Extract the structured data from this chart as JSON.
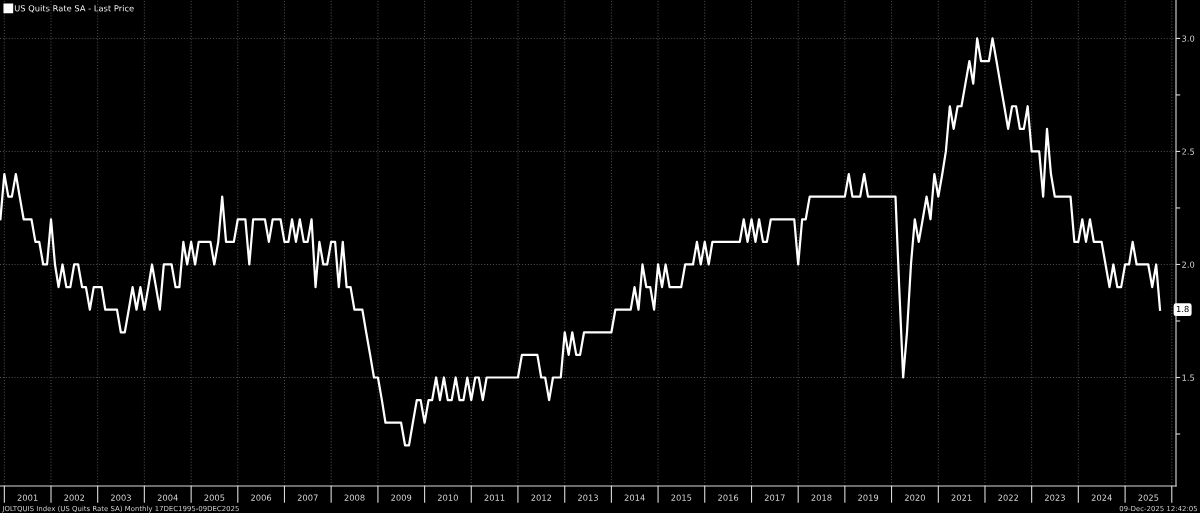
{
  "chart_data": {
    "type": "line",
    "legend": "top left",
    "grid": true,
    "line_style": "solid",
    "marker": "none",
    "xlim": [
      "2000-11-28",
      "2026-02-03"
    ],
    "ylim": [
      1.02,
      3.17
    ],
    "xticks": [
      {
        "value": "2001-01-01",
        "label": null
      },
      {
        "value": "2001-07-02",
        "label": "2001"
      },
      {
        "value": "2002-01-01",
        "label": null
      },
      {
        "value": "2002-07-02",
        "label": "2002"
      },
      {
        "value": "2003-01-01",
        "label": null
      },
      {
        "value": "2003-07-02",
        "label": "2003"
      },
      {
        "value": "2004-01-01",
        "label": null
      },
      {
        "value": "2004-07-02",
        "label": "2004"
      },
      {
        "value": "2005-01-01",
        "label": null
      },
      {
        "value": "2005-07-02",
        "label": "2005"
      },
      {
        "value": "2006-01-01",
        "label": null
      },
      {
        "value": "2006-07-02",
        "label": "2006"
      },
      {
        "value": "2007-01-01",
        "label": null
      },
      {
        "value": "2007-07-02",
        "label": "2007"
      },
      {
        "value": "2008-01-01",
        "label": null
      },
      {
        "value": "2008-07-02",
        "label": "2008"
      },
      {
        "value": "2009-01-01",
        "label": null
      },
      {
        "value": "2009-07-02",
        "label": "2009"
      },
      {
        "value": "2010-01-01",
        "label": null
      },
      {
        "value": "2010-07-02",
        "label": "2010"
      },
      {
        "value": "2011-01-01",
        "label": null
      },
      {
        "value": "2011-07-02",
        "label": "2011"
      },
      {
        "value": "2012-01-01",
        "label": null
      },
      {
        "value": "2012-07-02",
        "label": "2012"
      },
      {
        "value": "2013-01-01",
        "label": null
      },
      {
        "value": "2013-07-02",
        "label": "2013"
      },
      {
        "value": "2014-01-01",
        "label": null
      },
      {
        "value": "2014-07-02",
        "label": "2014"
      },
      {
        "value": "2015-01-01",
        "label": null
      },
      {
        "value": "2015-07-02",
        "label": "2015"
      },
      {
        "value": "2016-01-01",
        "label": null
      },
      {
        "value": "2016-07-02",
        "label": "2016"
      },
      {
        "value": "2017-01-01",
        "label": null
      },
      {
        "value": "2017-07-02",
        "label": "2017"
      },
      {
        "value": "2018-01-01",
        "label": null
      },
      {
        "value": "2018-07-02",
        "label": "2018"
      },
      {
        "value": "2019-01-01",
        "label": null
      },
      {
        "value": "2019-07-02",
        "label": "2019"
      },
      {
        "value": "2020-01-01",
        "label": null
      },
      {
        "value": "2020-07-02",
        "label": "2020"
      },
      {
        "value": "2021-01-01",
        "label": null
      },
      {
        "value": "2021-07-02",
        "label": "2021"
      },
      {
        "value": "2022-01-01",
        "label": null
      },
      {
        "value": "2022-07-02",
        "label": "2022"
      },
      {
        "value": "2023-01-01",
        "label": null
      },
      {
        "value": "2023-07-02",
        "label": "2023"
      },
      {
        "value": "2024-01-01",
        "label": null
      },
      {
        "value": "2024-07-02",
        "label": "2024"
      },
      {
        "value": "2025-01-01",
        "label": null
      },
      {
        "value": "2025-07-02",
        "label": "2025"
      },
      {
        "value": "2026-01-01",
        "label": null
      }
    ],
    "yticks": [
      {
        "value": 1.25,
        "label": null
      },
      {
        "value": 1.5,
        "label": "1.5"
      },
      {
        "value": 1.75,
        "label": null
      },
      {
        "value": 2.0,
        "label": "2.0"
      },
      {
        "value": 2.25,
        "label": null
      },
      {
        "value": 2.5,
        "label": "2.5"
      },
      {
        "value": 2.75,
        "label": null
      },
      {
        "value": 3.0,
        "label": "3.0"
      }
    ],
    "annotations": [
      {
        "text": "1.8",
        "x": "2025-10",
        "y": 1.8
      },
      "JOLTQUIS Index (US Quits Rate SA) Monthly 17DEC1995-09DEC2025",
      "09-Dec-2025 12:42:05"
    ],
    "series": [
      {
        "name": "US Quits Rate SA - Last Price",
        "color": "#ffffff",
        "x": [
          "2000-12",
          "2001-01",
          "2001-02",
          "2001-03",
          "2001-04",
          "2001-05",
          "2001-06",
          "2001-07",
          "2001-08",
          "2001-09",
          "2001-10",
          "2001-11",
          "2001-12",
          "2002-01",
          "2002-02",
          "2002-03",
          "2002-04",
          "2002-05",
          "2002-06",
          "2002-07",
          "2002-08",
          "2002-09",
          "2002-10",
          "2002-11",
          "2002-12",
          "2003-01",
          "2003-02",
          "2003-03",
          "2003-04",
          "2003-05",
          "2003-06",
          "2003-07",
          "2003-08",
          "2003-09",
          "2003-10",
          "2003-11",
          "2003-12",
          "2004-01",
          "2004-02",
          "2004-03",
          "2004-04",
          "2004-05",
          "2004-06",
          "2004-07",
          "2004-08",
          "2004-09",
          "2004-10",
          "2004-11",
          "2004-12",
          "2005-01",
          "2005-02",
          "2005-03",
          "2005-04",
          "2005-05",
          "2005-06",
          "2005-07",
          "2005-08",
          "2005-09",
          "2005-10",
          "2005-11",
          "2005-12",
          "2006-01",
          "2006-02",
          "2006-03",
          "2006-04",
          "2006-05",
          "2006-06",
          "2006-07",
          "2006-08",
          "2006-09",
          "2006-10",
          "2006-11",
          "2006-12",
          "2007-01",
          "2007-02",
          "2007-03",
          "2007-04",
          "2007-05",
          "2007-06",
          "2007-07",
          "2007-08",
          "2007-09",
          "2007-10",
          "2007-11",
          "2007-12",
          "2008-01",
          "2008-02",
          "2008-03",
          "2008-04",
          "2008-05",
          "2008-06",
          "2008-07",
          "2008-08",
          "2008-09",
          "2008-10",
          "2008-11",
          "2008-12",
          "2009-01",
          "2009-02",
          "2009-03",
          "2009-04",
          "2009-05",
          "2009-06",
          "2009-07",
          "2009-08",
          "2009-09",
          "2009-10",
          "2009-11",
          "2009-12",
          "2010-01",
          "2010-02",
          "2010-03",
          "2010-04",
          "2010-05",
          "2010-06",
          "2010-07",
          "2010-08",
          "2010-09",
          "2010-10",
          "2010-11",
          "2010-12",
          "2011-01",
          "2011-02",
          "2011-03",
          "2011-04",
          "2011-05",
          "2011-06",
          "2011-07",
          "2011-08",
          "2011-09",
          "2011-10",
          "2011-11",
          "2011-12",
          "2012-01",
          "2012-02",
          "2012-03",
          "2012-04",
          "2012-05",
          "2012-06",
          "2012-07",
          "2012-08",
          "2012-09",
          "2012-10",
          "2012-11",
          "2012-12",
          "2013-01",
          "2013-02",
          "2013-03",
          "2013-04",
          "2013-05",
          "2013-06",
          "2013-07",
          "2013-08",
          "2013-09",
          "2013-10",
          "2013-11",
          "2013-12",
          "2014-01",
          "2014-02",
          "2014-03",
          "2014-04",
          "2014-05",
          "2014-06",
          "2014-07",
          "2014-08",
          "2014-09",
          "2014-10",
          "2014-11",
          "2014-12",
          "2015-01",
          "2015-02",
          "2015-03",
          "2015-04",
          "2015-05",
          "2015-06",
          "2015-07",
          "2015-08",
          "2015-09",
          "2015-10",
          "2015-11",
          "2015-12",
          "2016-01",
          "2016-02",
          "2016-03",
          "2016-04",
          "2016-05",
          "2016-06",
          "2016-07",
          "2016-08",
          "2016-09",
          "2016-10",
          "2016-11",
          "2016-12",
          "2017-01",
          "2017-02",
          "2017-03",
          "2017-04",
          "2017-05",
          "2017-06",
          "2017-07",
          "2017-08",
          "2017-09",
          "2017-10",
          "2017-11",
          "2017-12",
          "2018-01",
          "2018-02",
          "2018-03",
          "2018-04",
          "2018-05",
          "2018-06",
          "2018-07",
          "2018-08",
          "2018-09",
          "2018-10",
          "2018-11",
          "2018-12",
          "2019-01",
          "2019-02",
          "2019-03",
          "2019-04",
          "2019-05",
          "2019-06",
          "2019-07",
          "2019-08",
          "2019-09",
          "2019-10",
          "2019-11",
          "2019-12",
          "2020-01",
          "2020-02",
          "2020-03",
          "2020-04",
          "2020-05",
          "2020-06",
          "2020-07",
          "2020-08",
          "2020-09",
          "2020-10",
          "2020-11",
          "2020-12",
          "2021-01",
          "2021-02",
          "2021-03",
          "2021-04",
          "2021-05",
          "2021-06",
          "2021-07",
          "2021-08",
          "2021-09",
          "2021-10",
          "2021-11",
          "2021-12",
          "2022-01",
          "2022-02",
          "2022-03",
          "2022-04",
          "2022-05",
          "2022-06",
          "2022-07",
          "2022-08",
          "2022-09",
          "2022-10",
          "2022-11",
          "2022-12",
          "2023-01",
          "2023-02",
          "2023-03",
          "2023-04",
          "2023-05",
          "2023-06",
          "2023-07",
          "2023-08",
          "2023-09",
          "2023-10",
          "2023-11",
          "2023-12",
          "2024-01",
          "2024-02",
          "2024-03",
          "2024-04",
          "2024-05",
          "2024-06",
          "2024-07",
          "2024-08",
          "2024-09",
          "2024-10",
          "2024-11",
          "2024-12",
          "2025-01",
          "2025-02",
          "2025-03",
          "2025-04",
          "2025-05",
          "2025-06",
          "2025-07",
          "2025-08",
          "2025-09",
          "2025-10"
        ],
        "values": [
          2.2,
          2.4,
          2.3,
          2.3,
          2.4,
          2.3,
          2.2,
          2.2,
          2.2,
          2.1,
          2.1,
          2.0,
          2.0,
          2.2,
          2.0,
          1.9,
          2.0,
          1.9,
          1.9,
          2.0,
          2.0,
          1.9,
          1.9,
          1.8,
          1.9,
          1.9,
          1.9,
          1.8,
          1.8,
          1.8,
          1.8,
          1.7,
          1.7,
          1.8,
          1.9,
          1.8,
          1.9,
          1.8,
          1.9,
          2.0,
          1.9,
          1.8,
          2.0,
          2.0,
          2.0,
          1.9,
          1.9,
          2.1,
          2.0,
          2.1,
          2.0,
          2.1,
          2.1,
          2.1,
          2.1,
          2.0,
          2.1,
          2.3,
          2.1,
          2.1,
          2.1,
          2.2,
          2.2,
          2.2,
          2.0,
          2.2,
          2.2,
          2.2,
          2.2,
          2.1,
          2.2,
          2.2,
          2.2,
          2.1,
          2.1,
          2.2,
          2.1,
          2.2,
          2.1,
          2.1,
          2.2,
          1.9,
          2.1,
          2.0,
          2.0,
          2.1,
          2.1,
          1.9,
          2.1,
          1.9,
          1.9,
          1.8,
          1.8,
          1.8,
          1.7,
          1.6,
          1.5,
          1.5,
          1.4,
          1.3,
          1.3,
          1.3,
          1.3,
          1.3,
          1.2,
          1.2,
          1.3,
          1.4,
          1.4,
          1.3,
          1.4,
          1.4,
          1.5,
          1.4,
          1.5,
          1.4,
          1.4,
          1.5,
          1.4,
          1.4,
          1.5,
          1.4,
          1.5,
          1.5,
          1.4,
          1.5,
          1.5,
          1.5,
          1.5,
          1.5,
          1.5,
          1.5,
          1.5,
          1.5,
          1.6,
          1.6,
          1.6,
          1.6,
          1.6,
          1.5,
          1.5,
          1.4,
          1.5,
          1.5,
          1.5,
          1.7,
          1.6,
          1.7,
          1.6,
          1.6,
          1.7,
          1.7,
          1.7,
          1.7,
          1.7,
          1.7,
          1.7,
          1.7,
          1.8,
          1.8,
          1.8,
          1.8,
          1.8,
          1.9,
          1.8,
          2.0,
          1.9,
          1.9,
          1.8,
          2.0,
          1.9,
          2.0,
          1.9,
          1.9,
          1.9,
          1.9,
          2.0,
          2.0,
          2.0,
          2.1,
          2.0,
          2.1,
          2.0,
          2.1,
          2.1,
          2.1,
          2.1,
          2.1,
          2.1,
          2.1,
          2.1,
          2.2,
          2.1,
          2.2,
          2.1,
          2.2,
          2.1,
          2.1,
          2.2,
          2.2,
          2.2,
          2.2,
          2.2,
          2.2,
          2.2,
          2.0,
          2.2,
          2.2,
          2.3,
          2.3,
          2.3,
          2.3,
          2.3,
          2.3,
          2.3,
          2.3,
          2.3,
          2.3,
          2.4,
          2.3,
          2.3,
          2.3,
          2.4,
          2.3,
          2.3,
          2.3,
          2.3,
          2.3,
          2.3,
          2.3,
          2.3,
          1.9,
          1.5,
          1.7,
          2.0,
          2.2,
          2.1,
          2.2,
          2.3,
          2.2,
          2.4,
          2.3,
          2.4,
          2.5,
          2.7,
          2.6,
          2.7,
          2.7,
          2.8,
          2.9,
          2.8,
          3.0,
          2.9,
          2.9,
          2.9,
          3.0,
          2.9,
          2.8,
          2.7,
          2.6,
          2.7,
          2.7,
          2.6,
          2.6,
          2.7,
          2.5,
          2.5,
          2.5,
          2.3,
          2.6,
          2.4,
          2.3,
          2.3,
          2.3,
          2.3,
          2.3,
          2.1,
          2.1,
          2.2,
          2.1,
          2.2,
          2.1,
          2.1,
          2.1,
          2.0,
          1.9,
          2.0,
          1.9,
          1.9,
          2.0,
          2.0,
          2.1,
          2.0,
          2.0,
          2.0,
          2.0,
          1.9,
          2.0,
          1.8
        ]
      }
    ]
  }
}
